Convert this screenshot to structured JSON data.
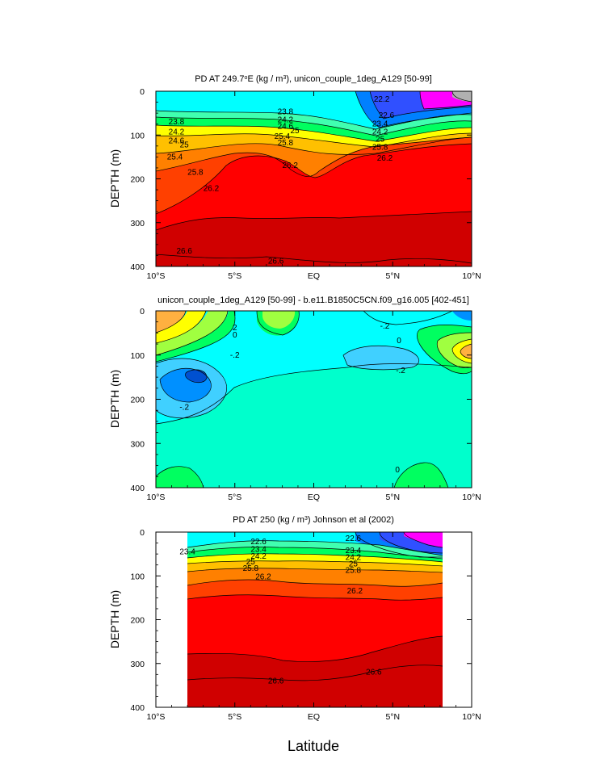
{
  "figure": {
    "xlabel": "Latitude",
    "contour_colors": {
      "p1": [
        "#00ffff",
        "#0080ff",
        "#3050ff",
        "#ff00ff",
        "#b0b0b0",
        "#40ffb0",
        "#00ff60",
        "#ffff00",
        "#ffc000",
        "#ff8000",
        "#ff4000",
        "#ff0000",
        "#d00000"
      ],
      "p2": [
        "#ffb040",
        "#ffff00",
        "#a0ff40",
        "#00ff60",
        "#00ffcc",
        "#00ffff",
        "#40d0ff",
        "#0090ff",
        "#0050d0"
      ],
      "blank": "#ffffff"
    }
  },
  "chart_data": [
    {
      "type": "contour",
      "title_prefix": "PD AT 249.7",
      "title_sup1": "o",
      "title_mid": "E (kg / m",
      "title_sup2": "3",
      "title_suffix": "), unicon_couple_1deg_A129 [50-99]",
      "ylabel": "DEPTH (m)",
      "xlim": [
        -10,
        10
      ],
      "ylim": [
        400,
        0
      ],
      "xticks": [
        -10,
        -5,
        0,
        5,
        10
      ],
      "xticklabels": [
        "10°S",
        "5°S",
        "EQ",
        "5°N",
        "10°N"
      ],
      "yticks": [
        0,
        100,
        200,
        300,
        400
      ],
      "yticklabels": [
        "0",
        "100",
        "200",
        "300",
        "400"
      ],
      "contour_labels": [
        {
          "text": "23.8",
          "x": -8.7,
          "y": 70
        },
        {
          "text": "24.2",
          "x": -8.7,
          "y": 93
        },
        {
          "text": "24.6",
          "x": -8.7,
          "y": 113
        },
        {
          "text": "25",
          "x": -8.2,
          "y": 123
        },
        {
          "text": "25.4",
          "x": -8.8,
          "y": 150
        },
        {
          "text": "25.8",
          "x": -7.5,
          "y": 185
        },
        {
          "text": "26.2",
          "x": -6.5,
          "y": 222
        },
        {
          "text": "26.6",
          "x": -8.2,
          "y": 365
        },
        {
          "text": "23.8",
          "x": -1.8,
          "y": 47
        },
        {
          "text": "24.2",
          "x": -1.8,
          "y": 65
        },
        {
          "text": "24.6",
          "x": -1.8,
          "y": 80
        },
        {
          "text": "25",
          "x": -1.2,
          "y": 90
        },
        {
          "text": "25.4",
          "x": -2.0,
          "y": 103
        },
        {
          "text": "25.8",
          "x": -1.8,
          "y": 118
        },
        {
          "text": "26.2",
          "x": -1.5,
          "y": 170
        },
        {
          "text": "26.6",
          "x": -2.4,
          "y": 388
        },
        {
          "text": "22.6",
          "x": 4.6,
          "y": 55
        },
        {
          "text": "23.4",
          "x": 4.2,
          "y": 75
        },
        {
          "text": "24.2",
          "x": 4.2,
          "y": 93
        },
        {
          "text": "25",
          "x": 4.2,
          "y": 110
        },
        {
          "text": "25.8",
          "x": 4.2,
          "y": 128
        },
        {
          "text": "26.2",
          "x": 4.5,
          "y": 153
        },
        {
          "text": "22.2",
          "x": 4.3,
          "y": 18
        }
      ]
    },
    {
      "type": "contour",
      "title": "unicon_couple_1deg_A129 [50-99] - b.e11.B1850C5CN.f09_g16.005 [402-451]",
      "ylabel": "DEPTH (m)",
      "xlim": [
        -10,
        10
      ],
      "ylim": [
        400,
        0
      ],
      "xticks": [
        -10,
        -5,
        0,
        5,
        10
      ],
      "xticklabels": [
        "10°S",
        "5°S",
        "EQ",
        "5°N",
        "10°N"
      ],
      "yticks": [
        0,
        100,
        200,
        300,
        400
      ],
      "yticklabels": [
        "0",
        "100",
        "200",
        "300",
        "400"
      ],
      "contour_labels": [
        {
          "text": "2",
          "x": -5.0,
          "y": 38
        },
        {
          "text": "0",
          "x": -5.0,
          "y": 55
        },
        {
          "text": "-.2",
          "x": -5.0,
          "y": 100
        },
        {
          "text": "-.2",
          "x": -8.2,
          "y": 218
        },
        {
          "text": "-.2",
          "x": 4.5,
          "y": 35
        },
        {
          "text": "0",
          "x": 5.4,
          "y": 68
        },
        {
          "text": "-.2",
          "x": 5.5,
          "y": 135
        },
        {
          "text": "0",
          "x": 5.3,
          "y": 360
        }
      ]
    },
    {
      "type": "contour",
      "title_prefix": "PD AT 250 (kg / m",
      "title_sup": "3",
      "title_suffix": ") Johnson et al (2002)",
      "ylabel": "DEPTH (m)",
      "xlim": [
        -10,
        10
      ],
      "ylim": [
        400,
        0
      ],
      "xticks": [
        -10,
        -5,
        0,
        5,
        10
      ],
      "xticklabels": [
        "10°S",
        "5°S",
        "EQ",
        "5°N",
        "10°N"
      ],
      "yticks": [
        0,
        100,
        200,
        300,
        400
      ],
      "yticklabels": [
        "0",
        "100",
        "200",
        "300",
        "400"
      ],
      "data_xrange": [
        -8,
        8
      ],
      "contour_labels": [
        {
          "text": "23.4",
          "x": -8.0,
          "y": 45
        },
        {
          "text": "22.6",
          "x": -3.5,
          "y": 22
        },
        {
          "text": "23.4",
          "x": -3.5,
          "y": 40
        },
        {
          "text": "24.2",
          "x": -3.5,
          "y": 55
        },
        {
          "text": "25",
          "x": -4.0,
          "y": 68
        },
        {
          "text": "25.8",
          "x": -4.0,
          "y": 83
        },
        {
          "text": "26.2",
          "x": -3.2,
          "y": 102
        },
        {
          "text": "22.6",
          "x": 2.5,
          "y": 15
        },
        {
          "text": "23.4",
          "x": 2.5,
          "y": 42
        },
        {
          "text": "24.2",
          "x": 2.5,
          "y": 58
        },
        {
          "text": "25",
          "x": 2.5,
          "y": 73
        },
        {
          "text": "25.8",
          "x": 2.5,
          "y": 88
        },
        {
          "text": "26.2",
          "x": 2.6,
          "y": 135
        },
        {
          "text": "26.6",
          "x": -2.4,
          "y": 340
        },
        {
          "text": "26.6",
          "x": 3.8,
          "y": 320
        }
      ]
    }
  ]
}
